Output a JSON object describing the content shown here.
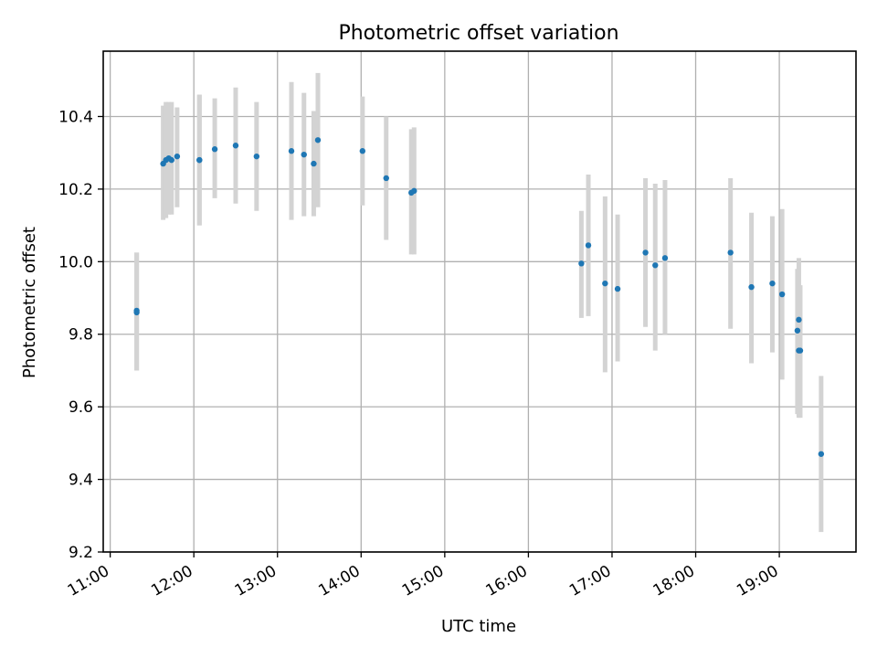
{
  "chart_data": {
    "type": "scatter",
    "title": "Photometric offset variation",
    "xlabel": "UTC time",
    "ylabel": "Photometric offset",
    "x_unit": "time of day (UTC)",
    "xlim": [
      "10:55",
      "19:55"
    ],
    "ylim": [
      9.2,
      10.58
    ],
    "x_ticks": [
      "11:00",
      "12:00",
      "13:00",
      "14:00",
      "15:00",
      "16:00",
      "17:00",
      "18:00",
      "19:00"
    ],
    "y_ticks": [
      "9.2",
      "9.4",
      "9.6",
      "9.8",
      "10.0",
      "10.2",
      "10.4"
    ],
    "grid": true,
    "colors": {
      "points": "#1f77b4",
      "error_bars": "#d3d3d3",
      "grid": "#b0b0b0",
      "axes": "#000000"
    },
    "series": [
      {
        "x": [
          "11:19",
          "11:19",
          "11:38",
          "11:40",
          "11:42",
          "11:44",
          "11:48",
          "12:04",
          "12:04",
          "12:15",
          "12:30",
          "12:45",
          "13:10",
          "13:19",
          "13:26",
          "13:29",
          "14:01",
          "14:18",
          "14:36",
          "14:38",
          "16:38",
          "16:43",
          "16:55",
          "17:04",
          "17:24",
          "17:31",
          "17:38",
          "18:25",
          "18:40",
          "18:55",
          "19:02",
          "19:13",
          "19:14",
          "19:14",
          "19:15",
          "19:30"
        ],
        "y": [
          9.865,
          9.86,
          10.27,
          10.28,
          10.285,
          10.28,
          10.29,
          10.28,
          10.28,
          10.31,
          10.32,
          10.29,
          10.305,
          10.295,
          10.27,
          10.335,
          10.305,
          10.23,
          10.19,
          10.195,
          9.995,
          10.045,
          9.94,
          9.925,
          10.025,
          9.99,
          10.01,
          10.025,
          9.93,
          9.94,
          9.91,
          9.81,
          9.84,
          9.755,
          9.755,
          9.47
        ],
        "err_low": [
          9.7,
          9.7,
          10.115,
          10.12,
          10.13,
          10.13,
          10.15,
          10.1,
          10.1,
          10.175,
          10.16,
          10.14,
          10.115,
          10.125,
          10.125,
          10.15,
          10.155,
          10.06,
          10.02,
          10.02,
          9.845,
          9.85,
          9.695,
          9.725,
          9.82,
          9.755,
          9.8,
          9.815,
          9.72,
          9.75,
          9.675,
          9.58,
          9.575,
          9.57,
          9.57,
          9.255
        ],
        "err_high": [
          10.025,
          10.025,
          10.43,
          10.44,
          10.44,
          10.44,
          10.425,
          10.46,
          10.46,
          10.45,
          10.48,
          10.44,
          10.495,
          10.465,
          10.415,
          10.52,
          10.455,
          10.4,
          10.365,
          10.37,
          10.14,
          10.24,
          10.18,
          10.13,
          10.23,
          10.215,
          10.225,
          10.23,
          10.135,
          10.125,
          10.145,
          9.98,
          10.01,
          9.935,
          9.935,
          9.685
        ]
      }
    ]
  }
}
